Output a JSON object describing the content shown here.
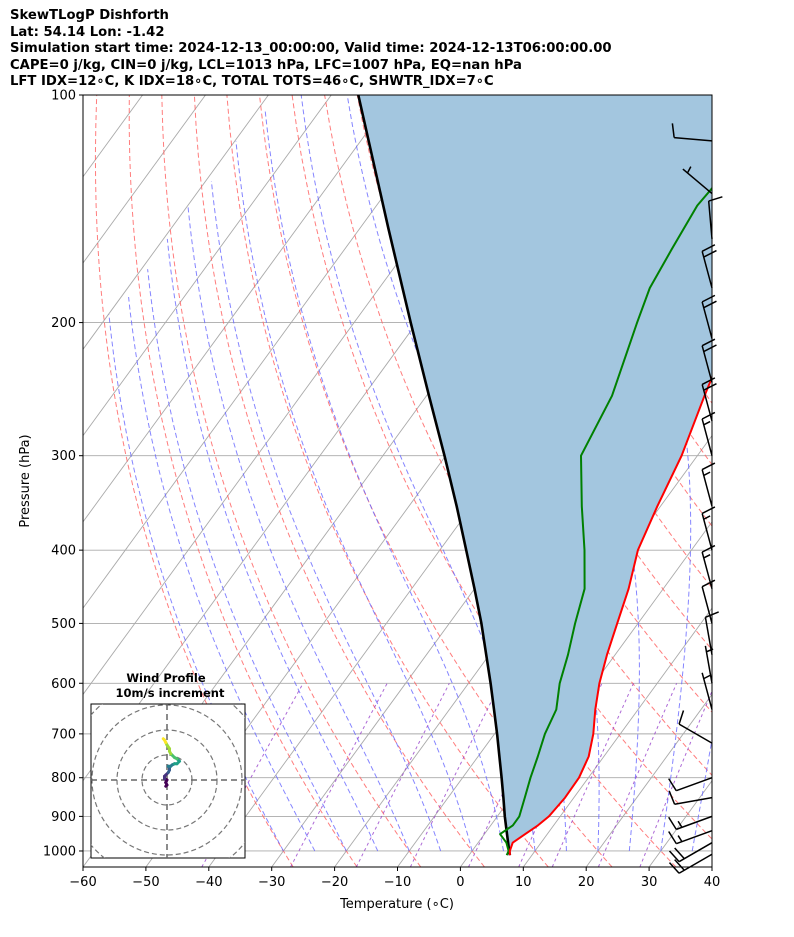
{
  "header": {
    "line1": "SkewTLogP Dishforth",
    "line2": "Lat: 54.14   Lon: -1.42",
    "line3": "Simulation start time: 2024-12-13_00:00:00, Valid time: 2024-12-13T06:00:00.00",
    "line4": "CAPE=0 j/kg, CIN=0 j/kg, LCL=1013 hPa, LFC=1007 hPa, EQ=nan hPa",
    "line5": "LFT IDX=12∘C, K IDX=18∘C, TOTAL TOTS=46∘C, SHWTR_IDX=7∘C"
  },
  "chart_data": {
    "type": "line",
    "subtype": "skew-t log-p",
    "xlabel": "Temperature (∘C)",
    "ylabel": "Pressure (hPa)",
    "xlim": [
      -60,
      40
    ],
    "ylim": [
      1050,
      100
    ],
    "yscale": "log",
    "x_ticks": [
      "−60",
      "−50",
      "−40",
      "−30",
      "−20",
      "−10",
      "0",
      "10",
      "20",
      "30",
      "40"
    ],
    "y_ticks": [
      "1000",
      "900",
      "800",
      "700",
      "600",
      "500",
      "400",
      "300",
      "200",
      "100"
    ],
    "grid": true,
    "colors": {
      "temperature": "#ff0000",
      "dewpoint": "#008000",
      "parcel": "#000000",
      "fill": "#a3c6df",
      "dry_adiabat": "#ff6666",
      "moist_adiabat": "#6666ff",
      "mixing_ratio": "#9944cc",
      "isotherm": "#aaaaaa"
    },
    "series": [
      {
        "role": "temperature",
        "points": [
          [
            1013,
            6.5
          ],
          [
            1000,
            6
          ],
          [
            975,
            5.5
          ],
          [
            950,
            6.5
          ],
          [
            925,
            7.5
          ],
          [
            900,
            8.2
          ],
          [
            850,
            8.6
          ],
          [
            800,
            8.5
          ],
          [
            750,
            7.6
          ],
          [
            700,
            5.7
          ],
          [
            650,
            3.2
          ],
          [
            600,
            0.8
          ],
          [
            550,
            -1.3
          ],
          [
            500,
            -3.3
          ],
          [
            450,
            -5.5
          ],
          [
            400,
            -8.5
          ],
          [
            350,
            -10.5
          ],
          [
            300,
            -12.5
          ],
          [
            250,
            -15.8
          ],
          [
            200,
            -19.5
          ],
          [
            180,
            -17.5
          ],
          [
            160,
            -14.5
          ],
          [
            140,
            -11
          ],
          [
            120,
            -7.5
          ],
          [
            100,
            -6
          ]
        ]
      },
      {
        "role": "dewpoint",
        "points": [
          [
            1013,
            6
          ],
          [
            1000,
            5.8
          ],
          [
            975,
            4.5
          ],
          [
            950,
            2.5
          ],
          [
            925,
            3.5
          ],
          [
            900,
            3.5
          ],
          [
            850,
            2.2
          ],
          [
            800,
            0.8
          ],
          [
            750,
            -0.5
          ],
          [
            700,
            -2
          ],
          [
            650,
            -3
          ],
          [
            600,
            -5.5
          ],
          [
            550,
            -7.5
          ],
          [
            500,
            -10
          ],
          [
            450,
            -12.5
          ],
          [
            400,
            -17
          ],
          [
            350,
            -22.5
          ],
          [
            300,
            -28.5
          ],
          [
            250,
            -30.5
          ],
          [
            200,
            -35
          ],
          [
            180,
            -37
          ],
          [
            160,
            -38
          ],
          [
            140,
            -39
          ],
          [
            120,
            -38
          ],
          [
            100,
            -33
          ]
        ]
      },
      {
        "role": "parcel",
        "points": [
          [
            1013,
            6.5
          ],
          [
            1000,
            5.9
          ],
          [
            950,
            3.6
          ],
          [
            900,
            1.2
          ],
          [
            850,
            -1.2
          ],
          [
            800,
            -3.8
          ],
          [
            750,
            -6.6
          ],
          [
            700,
            -9.6
          ],
          [
            650,
            -12.9
          ],
          [
            600,
            -16.5
          ],
          [
            550,
            -20.5
          ],
          [
            500,
            -24.9
          ],
          [
            450,
            -30
          ],
          [
            400,
            -35.8
          ],
          [
            350,
            -42.4
          ],
          [
            300,
            -50.2
          ],
          [
            250,
            -59.6
          ],
          [
            200,
            -71
          ],
          [
            150,
            -85.5
          ],
          [
            100,
            -105.7
          ]
        ]
      }
    ],
    "wind_barbs": [
      {
        "p": 1010,
        "spd": 20,
        "dir": 240
      },
      {
        "p": 975,
        "spd": 20,
        "dir": 240
      },
      {
        "p": 940,
        "spd": 15,
        "dir": 250
      },
      {
        "p": 900,
        "spd": 15,
        "dir": 250
      },
      {
        "p": 850,
        "spd": 10,
        "dir": 260
      },
      {
        "p": 800,
        "spd": 10,
        "dir": 250
      },
      {
        "p": 720,
        "spd": 10,
        "dir": 300
      },
      {
        "p": 650,
        "spd": 5,
        "dir": 345
      },
      {
        "p": 600,
        "spd": 5,
        "dir": 350
      },
      {
        "p": 550,
        "spd": 10,
        "dir": 350
      },
      {
        "p": 500,
        "spd": 10,
        "dir": 345
      },
      {
        "p": 450,
        "spd": 15,
        "dir": 345
      },
      {
        "p": 400,
        "spd": 15,
        "dir": 345
      },
      {
        "p": 350,
        "spd": 15,
        "dir": 345
      },
      {
        "p": 300,
        "spd": 15,
        "dir": 345
      },
      {
        "p": 270,
        "spd": 20,
        "dir": 345
      },
      {
        "p": 240,
        "spd": 20,
        "dir": 345
      },
      {
        "p": 210,
        "spd": 20,
        "dir": 345
      },
      {
        "p": 180,
        "spd": 20,
        "dir": 345
      },
      {
        "p": 155,
        "spd": 10,
        "dir": 355
      },
      {
        "p": 135,
        "spd": 5,
        "dir": 310
      },
      {
        "p": 115,
        "spd": 10,
        "dir": 275
      }
    ],
    "hodograph": {
      "title": "Wind Profile",
      "subtitle": "10m/s increment",
      "ring_step": 10,
      "points": [
        [
          -1,
          -5
        ],
        [
          0,
          -4
        ],
        [
          -1,
          -2
        ],
        [
          0,
          0
        ],
        [
          -2,
          1
        ],
        [
          -2,
          3
        ],
        [
          -1,
          4
        ],
        [
          1,
          6
        ],
        [
          2,
          8
        ],
        [
          2,
          9
        ],
        [
          2,
          10
        ],
        [
          1,
          11
        ],
        [
          3,
          11
        ],
        [
          4,
          12
        ],
        [
          6,
          13
        ],
        [
          8,
          13
        ],
        [
          10,
          15
        ],
        [
          9,
          16
        ],
        [
          8,
          17
        ],
        [
          6,
          18
        ],
        [
          4,
          20
        ],
        [
          3,
          21
        ],
        [
          2,
          23
        ],
        [
          2,
          25
        ],
        [
          0,
          28
        ],
        [
          -1,
          30
        ],
        [
          -2,
          32
        ],
        [
          -3,
          33
        ]
      ]
    }
  }
}
